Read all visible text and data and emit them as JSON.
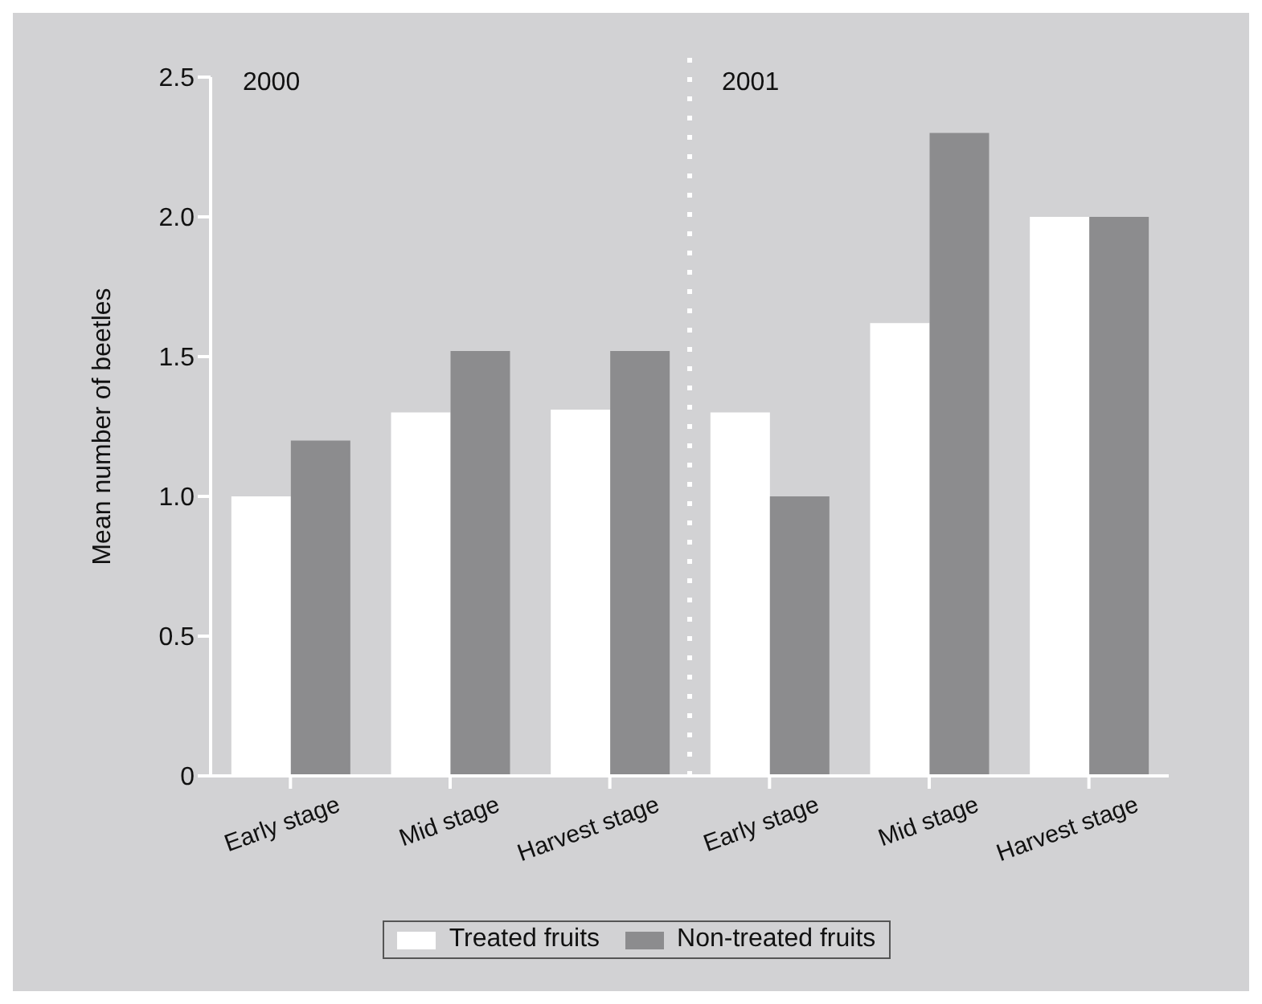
{
  "chart_data": {
    "type": "bar",
    "ylabel": "Mean number of beetles",
    "categories": [
      "Early stage",
      "Mid stage",
      "Harvest stage",
      "Early stage",
      "Mid stage",
      "Harvest stage"
    ],
    "series": [
      {
        "name": "Treated fruits",
        "color": "#ffffff",
        "values": [
          1.0,
          1.3,
          1.31,
          1.3,
          1.62,
          2.0
        ]
      },
      {
        "name": "Non-treated fruits",
        "color": "#8c8c8e",
        "values": [
          1.2,
          1.52,
          1.52,
          1.0,
          2.3,
          2.0
        ]
      }
    ],
    "ylim": [
      0,
      2.5
    ],
    "yticks": [
      0,
      {
        "value": 0.5,
        "label": "0.5"
      },
      {
        "value": 1,
        "label": "1.0"
      },
      {
        "value": 1.5,
        "label": "1.5"
      },
      {
        "value": 2,
        "label": "2.0"
      },
      {
        "value": 2.5,
        "label": "2.5"
      }
    ],
    "annotations": [
      "2000",
      "2001"
    ],
    "grid": false,
    "legend": "bottom"
  }
}
